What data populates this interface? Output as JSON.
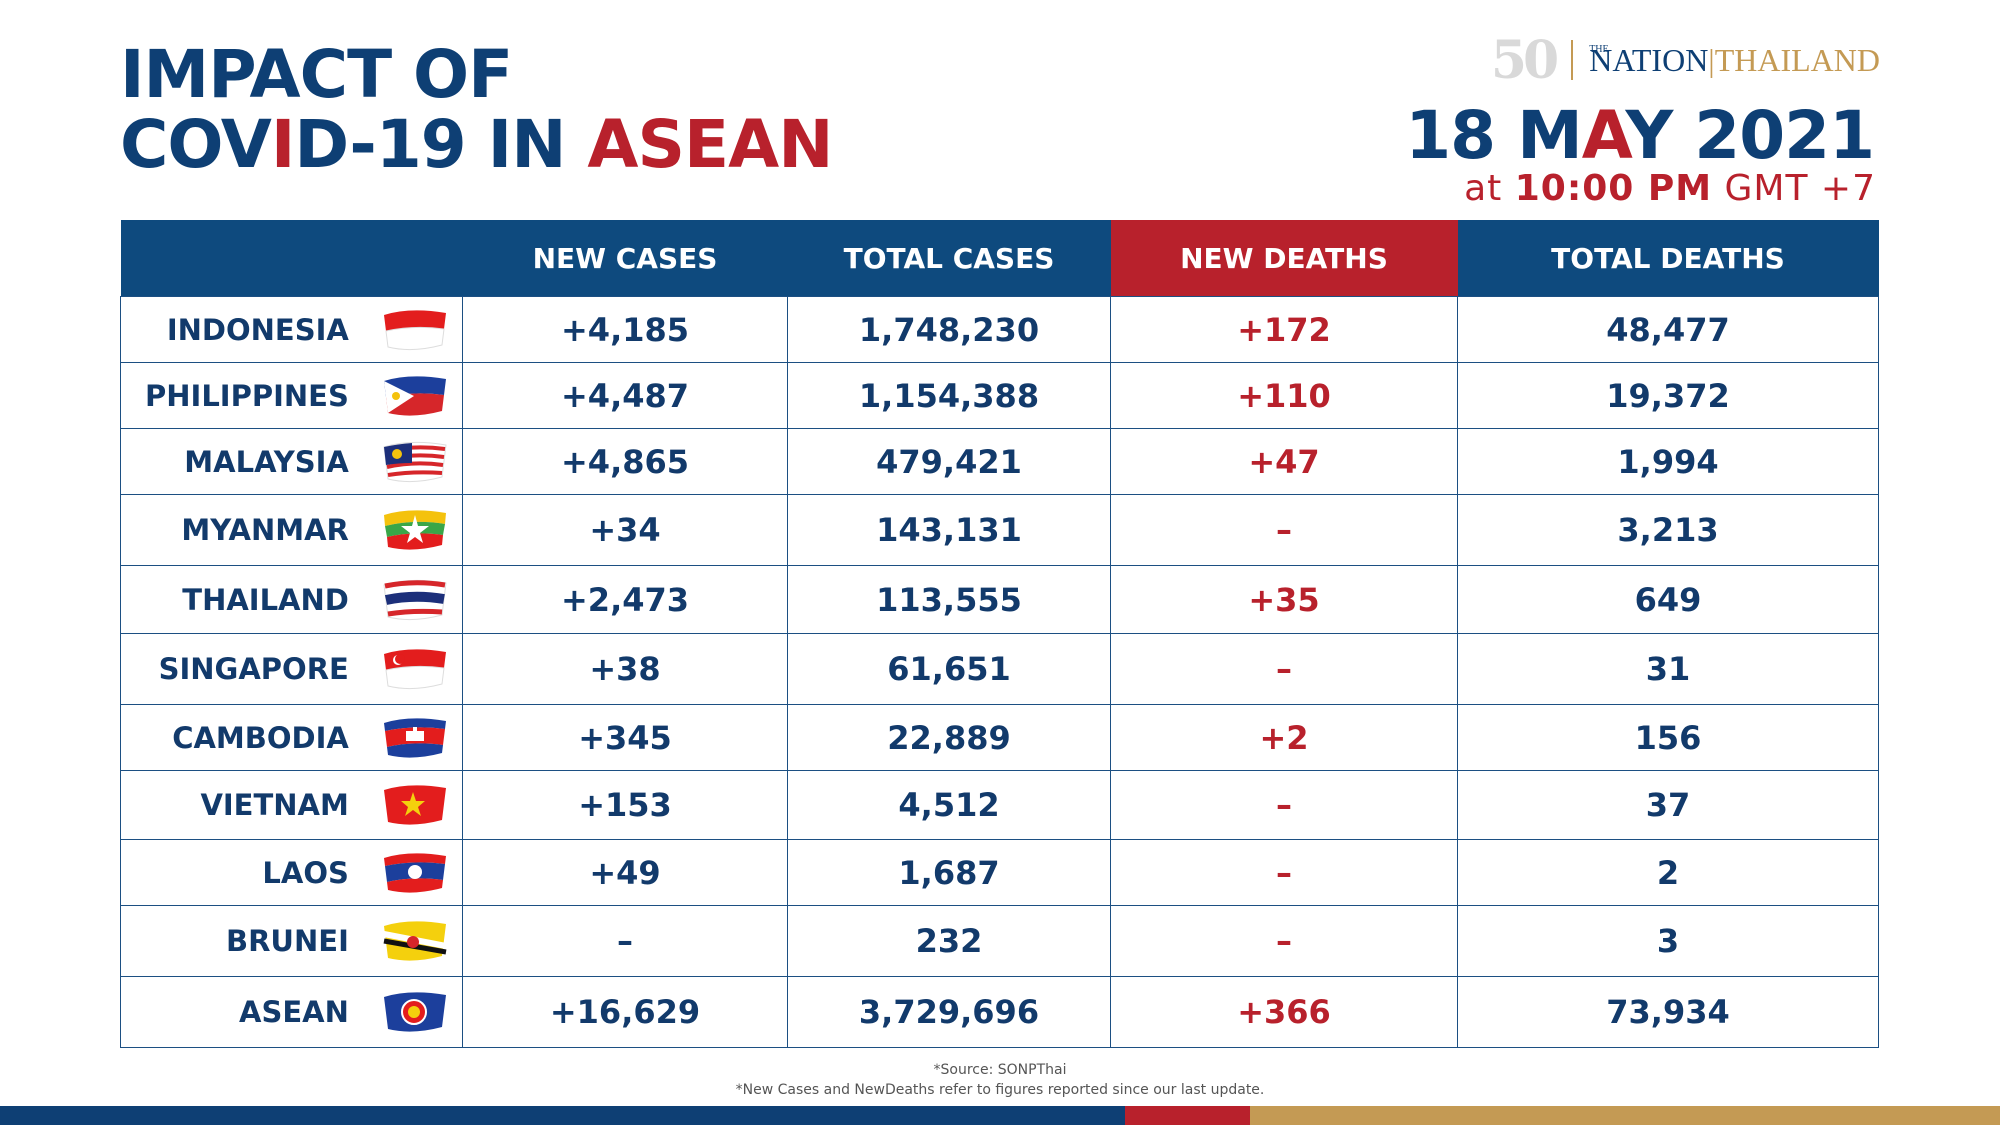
{
  "header": {
    "title_line1": "IMPACT OF",
    "title_line2_a": "COV",
    "title_line2_b": "I",
    "title_line2_c": "D-19 IN ",
    "title_line2_d": "ASEAN",
    "date_a": "18 M",
    "date_b": "A",
    "date_c": "Y 2021",
    "time_at": "at ",
    "time_value": "10:00 PM",
    "time_zone": " GMT +7"
  },
  "logo": {
    "anniversary": "50",
    "the": "THE",
    "nation": "NATION",
    "separator": "|",
    "thailand": "THAILAND"
  },
  "table": {
    "headers": [
      "",
      "NEW CASES",
      "TOTAL CASES",
      "NEW DEATHS",
      "TOTAL DEATHS"
    ],
    "rows": [
      {
        "country": "INDONESIA",
        "new_cases": "+4,185",
        "total_cases": "1,748,230",
        "new_deaths": "+172",
        "total_deaths": "48,477"
      },
      {
        "country": "PHILIPPINES",
        "new_cases": "+4,487",
        "total_cases": "1,154,388",
        "new_deaths": "+110",
        "total_deaths": "19,372"
      },
      {
        "country": "MALAYSIA",
        "new_cases": "+4,865",
        "total_cases": "479,421",
        "new_deaths": "+47",
        "total_deaths": "1,994"
      },
      {
        "country": "MYANMAR",
        "new_cases": "+34",
        "total_cases": "143,131",
        "new_deaths": "–",
        "total_deaths": "3,213"
      },
      {
        "country": "THAILAND",
        "new_cases": "+2,473",
        "total_cases": "113,555",
        "new_deaths": "+35",
        "total_deaths": "649"
      },
      {
        "country": "SINGAPORE",
        "new_cases": "+38",
        "total_cases": "61,651",
        "new_deaths": "–",
        "total_deaths": "31"
      },
      {
        "country": "CAMBODIA",
        "new_cases": "+345",
        "total_cases": "22,889",
        "new_deaths": "+2",
        "total_deaths": "156"
      },
      {
        "country": "VIETNAM",
        "new_cases": "+153",
        "total_cases": "4,512",
        "new_deaths": "–",
        "total_deaths": "37"
      },
      {
        "country": "LAOS",
        "new_cases": "+49",
        "total_cases": "1,687",
        "new_deaths": "–",
        "total_deaths": "2"
      },
      {
        "country": "BRUNEI",
        "new_cases": "–",
        "total_cases": "232",
        "new_deaths": "–",
        "total_deaths": "3"
      },
      {
        "country": "ASEAN",
        "new_cases": "+16,629",
        "total_cases": "3,729,696",
        "new_deaths": "+366",
        "total_deaths": "73,934"
      }
    ]
  },
  "footer": {
    "source": "*Source: SONPThai",
    "note": "*New Cases and NewDeaths refer to figures reported since our last update."
  },
  "colors": {
    "navy": "#0e3f74",
    "header_blue": "#0e4a7e",
    "red": "#b8212c",
    "gold": "#c49a54"
  },
  "icons": [
    "indonesia-flag-icon",
    "philippines-flag-icon",
    "malaysia-flag-icon",
    "myanmar-flag-icon",
    "thailand-flag-icon",
    "singapore-flag-icon",
    "cambodia-flag-icon",
    "vietnam-flag-icon",
    "laos-flag-icon",
    "brunei-flag-icon",
    "asean-flag-icon"
  ]
}
